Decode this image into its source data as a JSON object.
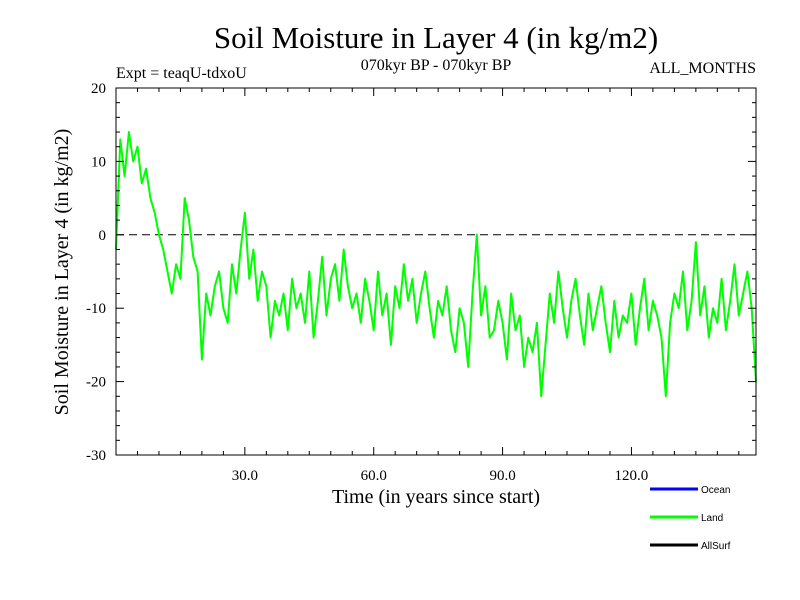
{
  "chart_data": {
    "type": "line",
    "title": "Soil Moisture in Layer 4 (in kg/m2)",
    "subtitle_left": "Expt = teaqU-tdxoU",
    "subtitle_center": "070kyr BP - 070kyr BP",
    "subtitle_right": "ALL_MONTHS",
    "xlabel": "Time (in years since start)",
    "ylabel": "Soil Moisture in Layer 4 (in kg/m2)",
    "xlim": [
      0,
      149
    ],
    "ylim": [
      -30,
      20
    ],
    "x_ticks": [
      30,
      60,
      90,
      120
    ],
    "x_tick_labels": [
      "30.0",
      "60.0",
      "90.0",
      "120.0"
    ],
    "y_ticks": [
      -30,
      -20,
      -10,
      0,
      10,
      20
    ],
    "y_tick_labels": [
      "-30",
      "-20",
      "-10",
      "0",
      "10",
      "20"
    ],
    "reference_line": {
      "y": 0,
      "style": "dashed"
    },
    "legend": {
      "placement": "bottom-right",
      "items": [
        {
          "name": "Ocean",
          "color": "#0000ff"
        },
        {
          "name": "Land",
          "color": "#00ff00"
        },
        {
          "name": "AllSurf",
          "color": "#000000"
        }
      ]
    },
    "series": [
      {
        "name": "Land",
        "color": "#00ff00",
        "x": [
          0,
          1,
          2,
          3,
          4,
          5,
          6,
          7,
          8,
          9,
          10,
          11,
          12,
          13,
          14,
          15,
          16,
          17,
          18,
          19,
          20,
          21,
          22,
          23,
          24,
          25,
          26,
          27,
          28,
          29,
          30,
          31,
          32,
          33,
          34,
          35,
          36,
          37,
          38,
          39,
          40,
          41,
          42,
          43,
          44,
          45,
          46,
          47,
          48,
          49,
          50,
          51,
          52,
          53,
          54,
          55,
          56,
          57,
          58,
          59,
          60,
          61,
          62,
          63,
          64,
          65,
          66,
          67,
          68,
          69,
          70,
          71,
          72,
          73,
          74,
          75,
          76,
          77,
          78,
          79,
          80,
          81,
          82,
          83,
          84,
          85,
          86,
          87,
          88,
          89,
          90,
          91,
          92,
          93,
          94,
          95,
          96,
          97,
          98,
          99,
          100,
          101,
          102,
          103,
          104,
          105,
          106,
          107,
          108,
          109,
          110,
          111,
          112,
          113,
          114,
          115,
          116,
          117,
          118,
          119,
          120,
          121,
          122,
          123,
          124,
          125,
          126,
          127,
          128,
          129,
          130,
          131,
          132,
          133,
          134,
          135,
          136,
          137,
          138,
          139,
          140,
          141,
          142,
          143,
          144,
          145,
          146,
          147,
          148,
          149
        ],
        "values": [
          -2,
          13,
          8,
          14,
          10,
          12,
          7,
          9,
          5,
          3,
          0,
          -2,
          -5,
          -8,
          -4,
          -6,
          5,
          2,
          -3,
          -5,
          -17,
          -8,
          -11,
          -7,
          -5,
          -10,
          -12,
          -4,
          -8,
          -2,
          3,
          -6,
          -2,
          -9,
          -5,
          -7,
          -14,
          -9,
          -11,
          -8,
          -13,
          -6,
          -10,
          -8,
          -12,
          -5,
          -14,
          -9,
          -3,
          -11,
          -6,
          -4,
          -9,
          -2,
          -7,
          -10,
          -8,
          -12,
          -6,
          -9,
          -13,
          -5,
          -11,
          -8,
          -15,
          -7,
          -10,
          -4,
          -9,
          -6,
          -12,
          -8,
          -5,
          -10,
          -14,
          -9,
          -11,
          -7,
          -13,
          -16,
          -10,
          -12,
          -18,
          -8,
          0,
          -11,
          -7,
          -14,
          -13,
          -9,
          -12,
          -17,
          -8,
          -13,
          -11,
          -18,
          -14,
          -16,
          -12,
          -22,
          -15,
          -8,
          -12,
          -5,
          -10,
          -14,
          -9,
          -6,
          -11,
          -15,
          -8,
          -13,
          -10,
          -7,
          -12,
          -16,
          -9,
          -14,
          -11,
          -12,
          -8,
          -15,
          -10,
          -6,
          -13,
          -9,
          -11,
          -14,
          -22,
          -12,
          -8,
          -10,
          -5,
          -13,
          -9,
          -1,
          -11,
          -7,
          -14,
          -10,
          -12,
          -6,
          -13,
          -9,
          -4,
          -11,
          -8,
          -5,
          -10,
          -20
        ]
      },
      {
        "name": "Ocean",
        "color": "#0000ff",
        "values": []
      },
      {
        "name": "AllSurf",
        "color": "#000000",
        "values": []
      }
    ]
  }
}
